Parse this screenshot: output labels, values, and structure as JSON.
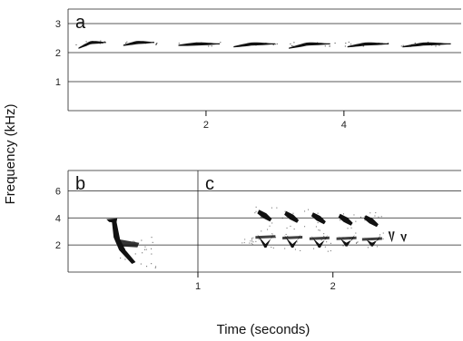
{
  "chart_data": [
    {
      "type": "heatmap",
      "panel_label": "a",
      "xlabel": "Time (seconds)",
      "ylabel": "Frequency (kHz)",
      "xlim": [
        0,
        5.7
      ],
      "ylim": [
        0,
        3.5
      ],
      "x_ticks": [
        2,
        4
      ],
      "y_ticks": [
        1,
        2,
        3
      ],
      "grid_y": [
        1,
        2,
        3
      ],
      "notes": [
        {
          "t_start": 0.15,
          "t_end": 0.55,
          "f_start": 2.15,
          "f_end": 2.35
        },
        {
          "t_start": 0.8,
          "t_end": 1.25,
          "f_start": 2.25,
          "f_end": 2.35
        },
        {
          "t_start": 1.6,
          "t_end": 2.2,
          "f_start": 2.25,
          "f_end": 2.3
        },
        {
          "t_start": 2.4,
          "t_end": 3.0,
          "f_start": 2.2,
          "f_end": 2.3
        },
        {
          "t_start": 3.2,
          "t_end": 3.8,
          "f_start": 2.15,
          "f_end": 2.3
        },
        {
          "t_start": 4.05,
          "t_end": 4.65,
          "f_start": 2.2,
          "f_end": 2.3
        },
        {
          "t_start": 4.85,
          "t_end": 5.55,
          "f_start": 2.2,
          "f_end": 2.3
        }
      ]
    },
    {
      "type": "heatmap",
      "panel_label": "b",
      "xlim": [
        0,
        1.0
      ],
      "ylim": [
        0,
        7.5
      ],
      "x_ticks": [
        1
      ],
      "y_ticks": [
        2,
        4,
        6
      ],
      "grid_y": [
        2,
        4,
        6
      ],
      "call": {
        "t_start": 0.33,
        "t_end": 0.52,
        "f_high": 3.9,
        "f_low": 0.6
      }
    },
    {
      "type": "heatmap",
      "panel_label": "c",
      "xlim": [
        1.0,
        2.95
      ],
      "ylim": [
        0,
        7.5
      ],
      "x_ticks": [
        2
      ],
      "y_ticks": [
        2,
        4,
        6
      ],
      "grid_y": [
        2,
        4,
        6
      ],
      "elements": [
        {
          "t": 1.48,
          "f_top": 4.6,
          "f_bottom": 1.8
        },
        {
          "t": 1.68,
          "f_top": 4.5,
          "f_bottom": 1.8
        },
        {
          "t": 1.88,
          "f_top": 4.4,
          "f_bottom": 1.8
        },
        {
          "t": 2.08,
          "f_top": 4.3,
          "f_bottom": 1.9
        },
        {
          "t": 2.27,
          "f_top": 4.2,
          "f_bottom": 1.9
        },
        {
          "t": 2.43,
          "f_top": 3.0,
          "f_bottom": 2.2
        },
        {
          "t": 2.52,
          "f_top": 2.8,
          "f_bottom": 2.2
        }
      ]
    }
  ]
}
